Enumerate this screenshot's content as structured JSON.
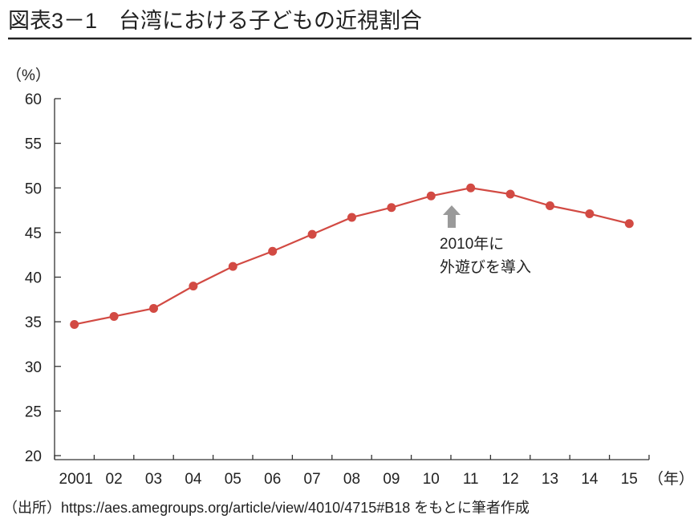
{
  "chart_data": {
    "type": "line",
    "title": "図表3－1　台湾における子どもの近視割合",
    "ylabel": "（%）",
    "xlabel": "（年）",
    "ylim": [
      20,
      60
    ],
    "yticks": [
      "20",
      "25",
      "30",
      "35",
      "40",
      "45",
      "50",
      "55",
      "60"
    ],
    "categories": [
      "2001",
      "02",
      "03",
      "04",
      "05",
      "06",
      "07",
      "08",
      "09",
      "10",
      "11",
      "12",
      "13",
      "14",
      "15"
    ],
    "values": [
      34.7,
      35.6,
      36.5,
      39.0,
      41.2,
      42.9,
      44.8,
      46.7,
      47.8,
      49.1,
      50.0,
      49.3,
      48.0,
      47.1,
      46.0
    ],
    "annotation": {
      "line1": "2010年に",
      "line2": "外遊びを導入",
      "at": "10"
    },
    "source": "（出所）https://aes.amegroups.org/article/view/4010/4715#B18 をもとに筆者作成",
    "grid": false,
    "colors": {
      "line": "#d24a43",
      "arrow": "#9a9a9a",
      "axis": "#333333"
    }
  }
}
